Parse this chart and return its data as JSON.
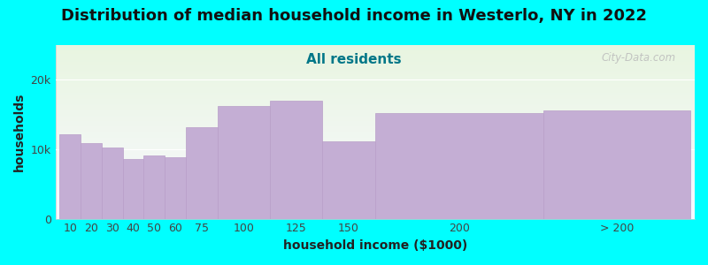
{
  "title": "Distribution of median household income in Westerlo, NY in 2022",
  "subtitle": "All residents",
  "xlabel": "household income ($1000)",
  "ylabel": "households",
  "background_color": "#00FFFF",
  "plot_bg_gradient_top": "#e8f5e0",
  "plot_bg_gradient_bottom": "#f0f0f8",
  "bar_color": "#c4aed4",
  "bar_edge_color": "#b89ec8",
  "categories": [
    "10",
    "20",
    "30",
    "40",
    "50",
    "60",
    "75",
    "100",
    "125",
    "150",
    "200",
    "> 200"
  ],
  "values": [
    12200,
    10900,
    10200,
    8600,
    9100,
    8900,
    13200,
    16200,
    17000,
    11200,
    15200,
    15600
  ],
  "bar_lefts": [
    0,
    10,
    20,
    30,
    40,
    50,
    60,
    75,
    100,
    125,
    150,
    230
  ],
  "bar_widths": [
    10,
    10,
    10,
    10,
    10,
    10,
    15,
    25,
    25,
    25,
    80,
    70
  ],
  "bar_centers": [
    "10",
    "20",
    "30",
    "40",
    "50",
    "60",
    "75",
    "100",
    "125",
    "150",
    "200",
    "> 200"
  ],
  "tick_positions": [
    5,
    15,
    25,
    35,
    45,
    55,
    67.5,
    87.5,
    112.5,
    137.5,
    190,
    265
  ],
  "xlim": [
    -2,
    302
  ],
  "yticks": [
    0,
    10000,
    20000
  ],
  "ytick_labels": [
    "0",
    "10k",
    "20k"
  ],
  "ymax": 25000,
  "title_fontsize": 13,
  "subtitle_fontsize": 11,
  "axis_label_fontsize": 10,
  "tick_fontsize": 9,
  "watermark_text": "City-Data.com",
  "watermark_color": "#bbbbbb"
}
